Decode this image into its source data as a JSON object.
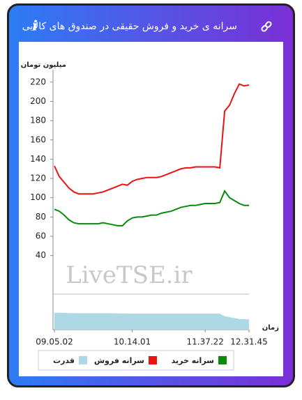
{
  "chart_data": {
    "type": "line",
    "title": "سرانه ی خرید و فروش حقیقی در صندوق های کالایی",
    "y_label": "میلیون تومان",
    "x_label": "زمان",
    "annotation": "LiveTSE.ir",
    "categories": [
      "09.05.02",
      null,
      null,
      null,
      null,
      null,
      null,
      null,
      null,
      null,
      null,
      null,
      null,
      null,
      null,
      null,
      "10.14.01",
      null,
      null,
      null,
      null,
      null,
      null,
      null,
      null,
      null,
      null,
      null,
      null,
      null,
      null,
      "11.37.22",
      null,
      null,
      null,
      null,
      null,
      null,
      null,
      null,
      "12.31.45"
    ],
    "ylim": [
      0,
      230
    ],
    "yticks": [
      40,
      60,
      80,
      100,
      120,
      140,
      160,
      180,
      200,
      220
    ],
    "y2lim": [
      0,
      2
    ],
    "series": [
      {
        "name": "سرانه خرید",
        "color": "#0a8a0a",
        "values": [
          88,
          86,
          82,
          77,
          74,
          73,
          73,
          73,
          73,
          73,
          74,
          73,
          72,
          71,
          71,
          76,
          79,
          80,
          80,
          81,
          82,
          82,
          84,
          85,
          86,
          88,
          90,
          91,
          92,
          92,
          93,
          94,
          94,
          94,
          95,
          107,
          100,
          97,
          94,
          92,
          92
        ]
      },
      {
        "name": "سرانه فروش",
        "color": "#ee1111",
        "values": [
          133,
          122,
          116,
          110,
          106,
          104,
          104,
          104,
          104,
          105,
          106,
          108,
          110,
          112,
          114,
          113,
          117,
          119,
          120,
          121,
          121,
          121,
          122,
          124,
          126,
          128,
          130,
          131,
          131,
          132,
          132,
          132,
          132,
          132,
          131,
          190,
          196,
          208,
          218,
          216,
          217
        ]
      },
      {
        "name": "قدرت",
        "color": "#add8e6",
        "axis": "y2",
        "type": "area",
        "values": [
          0.95,
          0.95,
          0.94,
          0.93,
          0.93,
          0.92,
          0.92,
          0.92,
          0.92,
          0.92,
          0.92,
          0.92,
          0.92,
          0.91,
          0.91,
          0.9,
          0.9,
          0.9,
          0.9,
          0.9,
          0.9,
          0.9,
          0.9,
          0.9,
          0.9,
          0.9,
          0.9,
          0.9,
          0.9,
          0.9,
          0.9,
          0.9,
          0.9,
          0.9,
          0.9,
          0.75,
          0.7,
          0.65,
          0.6,
          0.58,
          0.58
        ]
      }
    ]
  }
}
